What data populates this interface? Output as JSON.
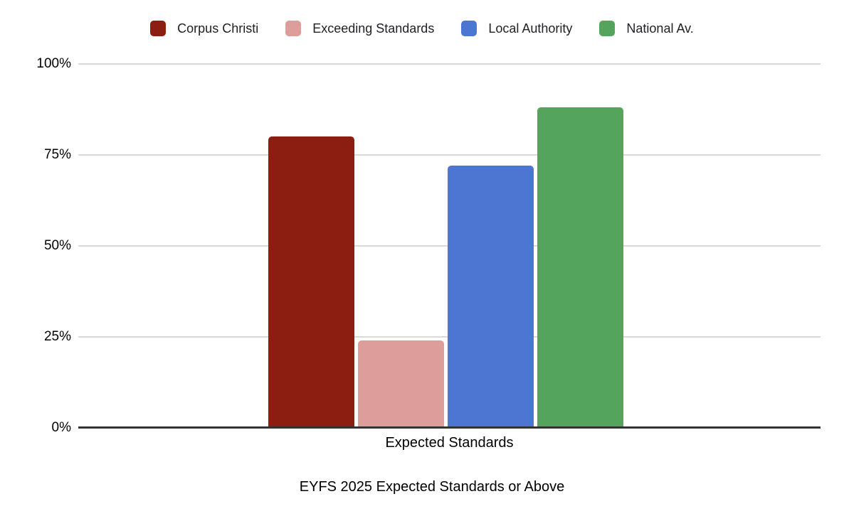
{
  "chart_data": {
    "type": "bar",
    "title": "EYFS 2025 Expected Standards or Above",
    "categories": [
      "Expected Standards"
    ],
    "series": [
      {
        "name": "Corpus Christi",
        "values": [
          80
        ],
        "color": "#8B1D11"
      },
      {
        "name": "Exceeding Standards",
        "values": [
          24
        ],
        "color": "#DC9D9B"
      },
      {
        "name": "Local Authority",
        "values": [
          72
        ],
        "color": "#4C76D2"
      },
      {
        "name": "National Av.",
        "values": [
          88
        ],
        "color": "#55A45E"
      }
    ],
    "xlabel": "",
    "ylabel": "",
    "ylim": [
      0,
      100
    ],
    "yticks": [
      {
        "label": "0%",
        "value": 0
      },
      {
        "label": "25%",
        "value": 25
      },
      {
        "label": "50%",
        "value": 50
      },
      {
        "label": "75%",
        "value": 75
      },
      {
        "label": "100%",
        "value": 100
      }
    ],
    "grid": true,
    "legend_position": "top"
  },
  "colors": {
    "gridline": "#d9d9d9",
    "axis_line": "#333333",
    "text": "#000000"
  }
}
